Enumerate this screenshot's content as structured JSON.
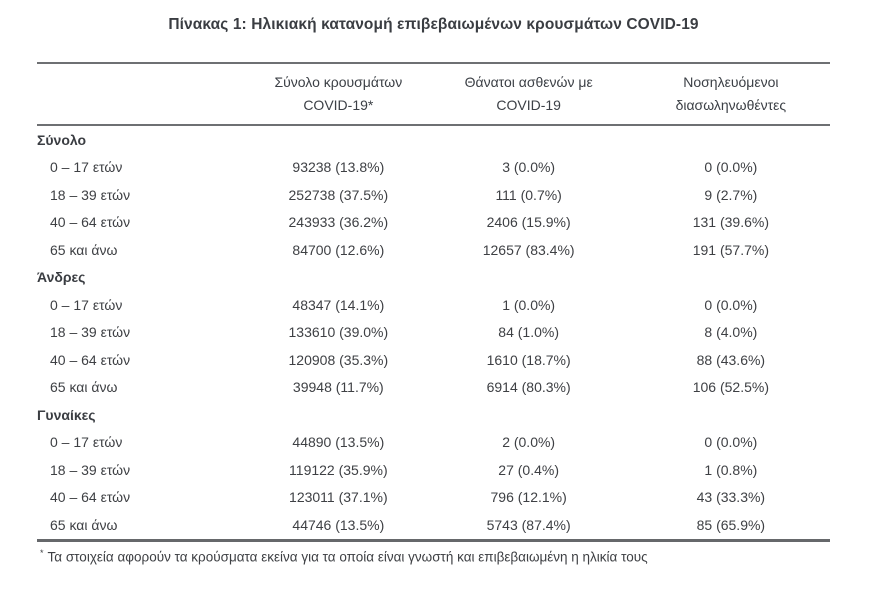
{
  "title": "Πίνακας 1: Ηλικιακή κατανομή επιβεβαιωμένων κρουσμάτων COVID-19",
  "colors": {
    "background": "#ffffff",
    "text": "#3e4044",
    "rule": "#6e7073"
  },
  "table": {
    "col_headers": [
      {
        "line1": "Σύνολο κρουσμάτων",
        "line2": "COVID-19*"
      },
      {
        "line1": "Θάνατοι ασθενών με",
        "line2": "COVID-19"
      },
      {
        "line1": "Νοσηλευόμενοι",
        "line2": "διασωληνωθέντες"
      }
    ],
    "sections": [
      {
        "label": "Σύνολο",
        "rows": [
          {
            "age": "0 – 17 ετών",
            "cases": "93238 (13.8%)",
            "deaths": "3 (0.0%)",
            "intubated": "0 (0.0%)"
          },
          {
            "age": "18 – 39 ετών",
            "cases": "252738 (37.5%)",
            "deaths": "111 (0.7%)",
            "intubated": "9 (2.7%)"
          },
          {
            "age": "40 – 64 ετών",
            "cases": "243933 (36.2%)",
            "deaths": "2406 (15.9%)",
            "intubated": "131 (39.6%)"
          },
          {
            "age": "65 και άνω",
            "cases": "84700 (12.6%)",
            "deaths": "12657 (83.4%)",
            "intubated": "191 (57.7%)"
          }
        ]
      },
      {
        "label": "Άνδρες",
        "rows": [
          {
            "age": "0 – 17 ετών",
            "cases": "48347 (14.1%)",
            "deaths": "1 (0.0%)",
            "intubated": "0 (0.0%)"
          },
          {
            "age": "18 – 39 ετών",
            "cases": "133610 (39.0%)",
            "deaths": "84 (1.0%)",
            "intubated": "8 (4.0%)"
          },
          {
            "age": "40 – 64 ετών",
            "cases": "120908 (35.3%)",
            "deaths": "1610 (18.7%)",
            "intubated": "88 (43.6%)"
          },
          {
            "age": "65 και άνω",
            "cases": "39948 (11.7%)",
            "deaths": "6914 (80.3%)",
            "intubated": "106 (52.5%)"
          }
        ]
      },
      {
        "label": "Γυναίκες",
        "rows": [
          {
            "age": "0 – 17 ετών",
            "cases": "44890 (13.5%)",
            "deaths": "2 (0.0%)",
            "intubated": "0 (0.0%)"
          },
          {
            "age": "18 – 39 ετών",
            "cases": "119122 (35.9%)",
            "deaths": "27 (0.4%)",
            "intubated": "1 (0.8%)"
          },
          {
            "age": "40 – 64 ετών",
            "cases": "123011 (37.1%)",
            "deaths": "796 (12.1%)",
            "intubated": "43 (33.3%)"
          },
          {
            "age": "65 και άνω",
            "cases": "44746 (13.5%)",
            "deaths": "5743 (87.4%)",
            "intubated": "85 (65.9%)"
          }
        ]
      }
    ]
  },
  "footnote": {
    "marker": "*",
    "text": "Τα στοιχεία αφορούν τα κρούσματα εκείνα για τα οποία είναι γνωστή και επιβεβαιωμένη η ηλικία τους"
  }
}
